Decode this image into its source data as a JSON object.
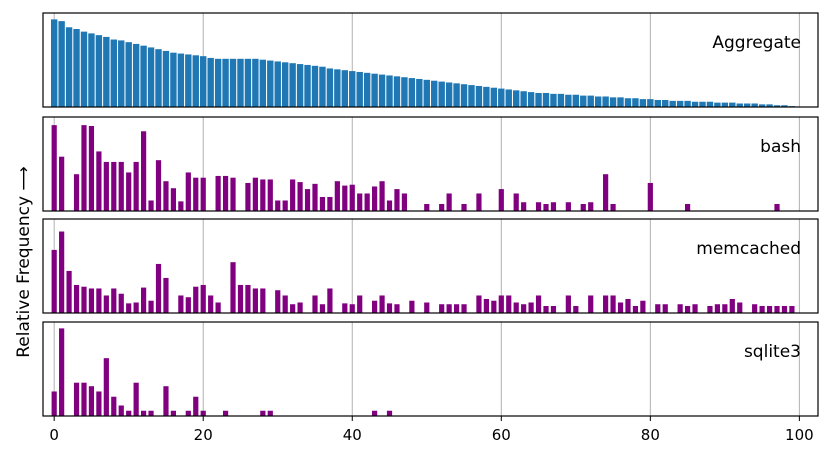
{
  "chart_data": {
    "type": "bar",
    "ylabel": "Relative Frequency  ⟶",
    "xlim": [
      -1.5,
      102.5
    ],
    "xticks": [
      0,
      20,
      40,
      60,
      80,
      100
    ],
    "xtick_labels": [
      "0",
      "20",
      "40",
      "60",
      "80",
      "100"
    ],
    "grid": "vertical",
    "colors": {
      "aggregate": "#1f77b4",
      "program": "#800080",
      "grid": "#b0b0b0"
    },
    "panels": [
      {
        "name": "Aggregate",
        "ymax": 1.05,
        "values": [
          1.0,
          0.98,
          0.91,
          0.89,
          0.86,
          0.84,
          0.82,
          0.8,
          0.77,
          0.76,
          0.74,
          0.72,
          0.7,
          0.68,
          0.66,
          0.64,
          0.62,
          0.61,
          0.6,
          0.59,
          0.58,
          0.56,
          0.55,
          0.55,
          0.55,
          0.55,
          0.55,
          0.55,
          0.54,
          0.53,
          0.52,
          0.51,
          0.5,
          0.49,
          0.48,
          0.47,
          0.46,
          0.44,
          0.43,
          0.42,
          0.41,
          0.4,
          0.39,
          0.38,
          0.37,
          0.36,
          0.35,
          0.34,
          0.33,
          0.32,
          0.31,
          0.3,
          0.29,
          0.28,
          0.27,
          0.26,
          0.25,
          0.24,
          0.23,
          0.22,
          0.21,
          0.2,
          0.19,
          0.18,
          0.17,
          0.16,
          0.16,
          0.15,
          0.15,
          0.14,
          0.14,
          0.13,
          0.13,
          0.12,
          0.12,
          0.11,
          0.11,
          0.1,
          0.1,
          0.09,
          0.09,
          0.08,
          0.08,
          0.07,
          0.07,
          0.07,
          0.06,
          0.06,
          0.06,
          0.05,
          0.05,
          0.05,
          0.04,
          0.04,
          0.04,
          0.03,
          0.03,
          0.02,
          0.02,
          0.01
        ]
      },
      {
        "name": "bash",
        "ymax": 1.05,
        "values": [
          1.0,
          0.62,
          0,
          0,
          0.42,
          0.98,
          0.97,
          0.68,
          0.56,
          0.56,
          0.56,
          0.44,
          0,
          0.91,
          0.12,
          0.58,
          0,
          0.34,
          0.26,
          0.11,
          0,
          0.44,
          0,
          0.38,
          0.38,
          0,
          0,
          0,
          0,
          0,
          0.4,
          0.4,
          0,
          0.38,
          0.32,
          0.38,
          0.36,
          0,
          0,
          0.36,
          0.12,
          0.12,
          0,
          0,
          0,
          0.33,
          0.25,
          0.31,
          0.16,
          0.16,
          0,
          0,
          0.34,
          0.29,
          0.3,
          0.2,
          0.2,
          0,
          0,
          0.28,
          0.34,
          0.12,
          0,
          0.25,
          0.2,
          0.08,
          0.08,
          0.2,
          0.08,
          0.2,
          0.25,
          0.2,
          0,
          0.1,
          0,
          0,
          0,
          0,
          0,
          0,
          0,
          0,
          0,
          0,
          0,
          0,
          0.34,
          0.08,
          0,
          0,
          0,
          0,
          0,
          0,
          0,
          0,
          0,
          0,
          0,
          0,
          0,
          0,
          0,
          0,
          0,
          0,
          0,
          0,
          0,
          0.42,
          0,
          0,
          0,
          0,
          0,
          0,
          0,
          0,
          0,
          0,
          0,
          0,
          0.32,
          0,
          0,
          0,
          0,
          0,
          0,
          0,
          0,
          0,
          0,
          0,
          0,
          0,
          0,
          0,
          0,
          0,
          0,
          0,
          0,
          0,
          0,
          0,
          0,
          0,
          0,
          0,
          0,
          0,
          0,
          0,
          0,
          0,
          0,
          0,
          0,
          0,
          0,
          0,
          0,
          0,
          0,
          0,
          0,
          0,
          0,
          0,
          0,
          0,
          0.08,
          0,
          0,
          0
        ],
        "xs": [
          0,
          0.7,
          1.6,
          2.4,
          3.5,
          4.1,
          4.8,
          5.5,
          6.2,
          7.1,
          7.9,
          8.5,
          9.3,
          10.1,
          10.9,
          11.6,
          12.3,
          12.9,
          13.7,
          14.5,
          15.3,
          16.1,
          16.9,
          17.7,
          18.5,
          19.3,
          20.1,
          20.9,
          21.7,
          22.5,
          23.3,
          24.1,
          24.9,
          25.7,
          26.5,
          27.3,
          28.1,
          28.9,
          29.7,
          30.5,
          31.3,
          32.1,
          32.9,
          33.7,
          34.5,
          35.3,
          36.1,
          36.9,
          37.7,
          38.5,
          39.3,
          40.1,
          40.9,
          41.7,
          42.5,
          43.3,
          44.1,
          44.9,
          45.7,
          46.5,
          47.3,
          48.1,
          48.9,
          49.7,
          50.5,
          51.3,
          52.1,
          52.9,
          53.7,
          54.5,
          55.3,
          56.1,
          56.9,
          57.7,
          58.5,
          59.3,
          60.1,
          60.9,
          61.7,
          62.5,
          63.3,
          64.1,
          64.9,
          65.7,
          66.5,
          67.3,
          68.1,
          68.9,
          69.7,
          70.5,
          71.3,
          72.1,
          72.9,
          73.7,
          74.5,
          75.3,
          76.1,
          76.9,
          77.7,
          78.5,
          79.3,
          80.1,
          80.9,
          81.7,
          82.5,
          83.3,
          84.1,
          84.9,
          85.7,
          86.5,
          87.3,
          88.1,
          88.9,
          89.7,
          90.5,
          91.3,
          92.1,
          92.9,
          93.7,
          94.5,
          95.3,
          96.1,
          96.9,
          97.7,
          98.5,
          99.3,
          100,
          100,
          100,
          100,
          100,
          100,
          100,
          100,
          100,
          100,
          100,
          100,
          100,
          100,
          100,
          100,
          100,
          100,
          100,
          100,
          100,
          100,
          100,
          100,
          100,
          100,
          100,
          100,
          100,
          100,
          100,
          100,
          100,
          100,
          100,
          100,
          100,
          100,
          100,
          100,
          100,
          100,
          100,
          100,
          100,
          100,
          100,
          100,
          100,
          100,
          100,
          100,
          100
        ]
      },
      {
        "name": "memcached",
        "ymax": 1.05,
        "values": [
          0.72,
          0.93,
          0.48,
          0.32,
          0.3,
          0.28,
          0.28,
          0.2,
          0.28,
          0.22,
          0.11,
          0.12,
          0.29,
          0.14,
          0.56,
          0.4,
          0.2,
          0.18,
          0.3,
          0.32,
          0.2,
          0.12,
          0.58,
          0.32,
          0.32,
          0.28,
          0.28,
          0.26,
          0.2,
          0.1,
          0.12,
          0.2,
          0.1,
          0.28,
          0.11,
          0.1,
          0.2,
          0.14,
          0.2,
          0.11,
          0.1,
          0.14,
          0.12,
          0.1,
          0.1,
          0.1,
          0.1,
          0.2,
          0.16,
          0.14,
          0.2,
          0.2,
          0.12,
          0.1,
          0.12,
          0.2,
          0.08,
          0.08,
          0.2,
          0.08,
          0.2,
          0.2,
          0.2,
          0.12,
          0.16,
          0.08,
          0.14,
          0.1,
          0.1,
          0.1,
          0.08,
          0.1,
          0.08,
          0.1,
          0.1,
          0.16,
          0.12,
          0.1,
          0.08,
          0.08,
          0.08,
          0.08,
          0.08
        ],
        "xs": [
          0.3,
          0.8,
          2.5,
          3.4,
          4.2,
          5.0,
          5.8,
          6.6,
          7.3,
          8.2,
          9.0,
          9.9,
          10.5,
          11.3,
          12.0,
          12.8,
          13.6,
          14.4,
          15.2,
          16.2,
          17.0,
          17.8,
          18.6,
          19.4,
          20.2,
          21.0,
          21.8,
          22.6,
          23.4,
          24.2,
          25.0,
          25.8,
          26.6,
          27.4,
          28.2,
          29.0,
          29.8,
          30.6,
          31.4,
          32.2,
          33.0,
          33.8,
          34.6,
          35.4,
          36.2,
          37.0,
          37.8,
          38.6,
          39.4,
          40.2,
          41.0,
          41.8,
          42.6,
          43.4,
          44.2,
          45.0,
          45.8,
          46.6,
          47.4,
          48.2,
          49.0,
          49.8,
          50.6,
          51.4,
          52.2,
          53.0,
          53.8,
          54.6,
          55.4,
          56.2,
          57.0,
          57.8,
          58.6,
          59.4,
          60.2,
          61.0,
          61.8,
          62.6,
          63.4,
          64.2,
          65.0,
          65.8,
          66.6
        ]
      },
      {
        "name": "sqlite3",
        "ymax": 1.05,
        "values": [
          0.28,
          1.0,
          0,
          0,
          0.38,
          0.38,
          0.34,
          0.28,
          0.66,
          0.22,
          0.12,
          0,
          0.38,
          0,
          0,
          0.06,
          0,
          0.06,
          0.34,
          0.06,
          0,
          0,
          0,
          0.06,
          0,
          0,
          0,
          0,
          0.22,
          0.06,
          0,
          0,
          0,
          0,
          0,
          0,
          0,
          0,
          0,
          0,
          0,
          0,
          0,
          0,
          0,
          0,
          0.06,
          0.06
        ],
        "xs": [
          0.5,
          1.5,
          2.5,
          3.2,
          4.0,
          4.8,
          5.6,
          6.4,
          8.2,
          9.0,
          9.9,
          10.8,
          12.6,
          13.5,
          14.4,
          15.5,
          16.4,
          17.5,
          18.8,
          19.6,
          20.5,
          21.4,
          22.3,
          23.4,
          24.3,
          25.2,
          26.1,
          27.0,
          28.2,
          29.0,
          29.9,
          30.8,
          31.7,
          32.6,
          33.5,
          34.4,
          35.3,
          36.2,
          37.1,
          38.0,
          38.9,
          39.8,
          40.7,
          41.6,
          42.5,
          43.4,
          43.6,
          45.4
        ]
      }
    ]
  }
}
